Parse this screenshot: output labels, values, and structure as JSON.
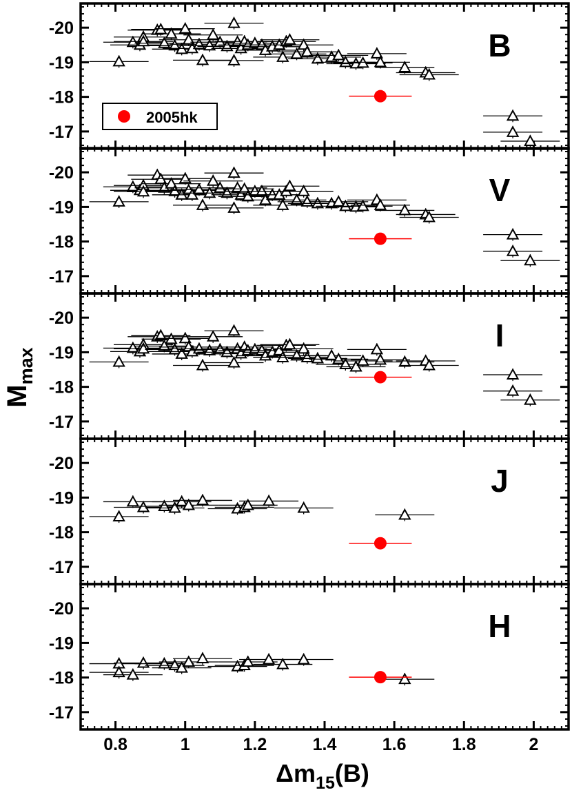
{
  "figure": {
    "ylabel_main": "M",
    "ylabel_sub": "max",
    "xlabel_delta": "Δm",
    "xlabel_sub": "15",
    "xlabel_tail": "(B)"
  },
  "chart_data": {
    "type": "scatter",
    "x_axis": {
      "label": "Δm15(B)",
      "range": [
        0.7,
        2.1
      ],
      "ticks": [
        0.8,
        1,
        1.2,
        1.4,
        1.6,
        1.8,
        2
      ],
      "tick_labels": [
        "0.8",
        "1",
        "1.2",
        "1.4",
        "1.6",
        "1.8",
        "2"
      ]
    },
    "y_axis": {
      "label": "Mmax",
      "range": [
        -16.5,
        -20.7
      ],
      "ticks": [
        -20,
        -19,
        -18,
        -17
      ],
      "tick_labels": [
        "-20",
        "-19",
        "-18",
        "-17"
      ],
      "inverted": true
    },
    "legend": {
      "label": "2005hk",
      "position": "top-left",
      "panel": "B"
    },
    "colors": {
      "highlight": "#ff0000",
      "comparison": "#000000"
    },
    "panels": [
      {
        "band": "B",
        "highlight": {
          "x": 1.56,
          "y": -18.02,
          "xerr": 0.09,
          "yerr": 0.3
        },
        "points": [
          [
            0.81,
            -19.02
          ],
          [
            0.85,
            -19.58
          ],
          [
            0.87,
            -19.5
          ],
          [
            0.88,
            -19.73
          ],
          [
            0.88,
            -19.6
          ],
          [
            0.92,
            -19.93
          ],
          [
            0.93,
            -19.95
          ],
          [
            0.94,
            -19.55
          ],
          [
            0.96,
            -19.82
          ],
          [
            0.97,
            -19.48
          ],
          [
            0.99,
            -19.38
          ],
          [
            1.0,
            -19.97
          ],
          [
            1.01,
            -19.65
          ],
          [
            1.02,
            -19.4
          ],
          [
            1.04,
            -19.52
          ],
          [
            1.05,
            -19.06
          ],
          [
            1.07,
            -19.48
          ],
          [
            1.08,
            -19.79
          ],
          [
            1.1,
            -19.58
          ],
          [
            1.12,
            -19.46
          ],
          [
            1.14,
            -20.13
          ],
          [
            1.14,
            -19.05
          ],
          [
            1.15,
            -19.59
          ],
          [
            1.16,
            -19.4
          ],
          [
            1.17,
            -19.6
          ],
          [
            1.18,
            -19.5
          ],
          [
            1.2,
            -19.55
          ],
          [
            1.22,
            -19.5
          ],
          [
            1.23,
            -19.35
          ],
          [
            1.25,
            -19.45
          ],
          [
            1.27,
            -19.5
          ],
          [
            1.28,
            -19.15
          ],
          [
            1.29,
            -19.6
          ],
          [
            1.3,
            -19.65
          ],
          [
            1.32,
            -19.24
          ],
          [
            1.34,
            -19.5
          ],
          [
            1.35,
            -19.3
          ],
          [
            1.38,
            -19.1
          ],
          [
            1.42,
            -19.15
          ],
          [
            1.44,
            -19.2
          ],
          [
            1.46,
            -19.0
          ],
          [
            1.49,
            -18.96
          ],
          [
            1.51,
            -18.98
          ],
          [
            1.55,
            -19.25
          ],
          [
            1.56,
            -19.0
          ],
          [
            1.63,
            -18.85
          ],
          [
            1.69,
            -18.7
          ],
          [
            1.7,
            -18.64
          ],
          [
            1.94,
            -17.45
          ],
          [
            1.94,
            -16.98
          ],
          [
            1.99,
            -16.72
          ]
        ]
      },
      {
        "band": "V",
        "highlight": {
          "x": 1.56,
          "y": -18.08,
          "xerr": 0.09,
          "yerr": 0.3
        },
        "points": [
          [
            0.81,
            -19.15
          ],
          [
            0.85,
            -19.58
          ],
          [
            0.87,
            -19.48
          ],
          [
            0.88,
            -19.62
          ],
          [
            0.88,
            -19.44
          ],
          [
            0.92,
            -19.92
          ],
          [
            0.93,
            -19.8
          ],
          [
            0.94,
            -19.55
          ],
          [
            0.96,
            -19.67
          ],
          [
            0.97,
            -19.45
          ],
          [
            0.99,
            -19.35
          ],
          [
            1.0,
            -19.82
          ],
          [
            1.01,
            -19.48
          ],
          [
            1.02,
            -19.35
          ],
          [
            1.04,
            -19.5
          ],
          [
            1.05,
            -19.05
          ],
          [
            1.07,
            -19.4
          ],
          [
            1.08,
            -19.75
          ],
          [
            1.1,
            -19.55
          ],
          [
            1.12,
            -19.4
          ],
          [
            1.14,
            -19.98
          ],
          [
            1.14,
            -18.97
          ],
          [
            1.15,
            -19.55
          ],
          [
            1.16,
            -19.35
          ],
          [
            1.17,
            -19.52
          ],
          [
            1.18,
            -19.3
          ],
          [
            1.2,
            -19.45
          ],
          [
            1.22,
            -19.45
          ],
          [
            1.23,
            -19.2
          ],
          [
            1.25,
            -19.35
          ],
          [
            1.27,
            -19.35
          ],
          [
            1.28,
            -19.05
          ],
          [
            1.29,
            -19.45
          ],
          [
            1.3,
            -19.6
          ],
          [
            1.32,
            -19.2
          ],
          [
            1.34,
            -19.45
          ],
          [
            1.35,
            -19.15
          ],
          [
            1.38,
            -19.1
          ],
          [
            1.42,
            -19.1
          ],
          [
            1.44,
            -19.15
          ],
          [
            1.46,
            -19.02
          ],
          [
            1.49,
            -19.0
          ],
          [
            1.51,
            -19.02
          ],
          [
            1.55,
            -19.2
          ],
          [
            1.56,
            -19.05
          ],
          [
            1.63,
            -18.9
          ],
          [
            1.69,
            -18.78
          ],
          [
            1.7,
            -18.7
          ],
          [
            1.94,
            -18.2
          ],
          [
            1.94,
            -17.72
          ],
          [
            1.99,
            -17.45
          ]
        ]
      },
      {
        "band": "I",
        "highlight": {
          "x": 1.56,
          "y": -18.28,
          "xerr": 0.09,
          "yerr": 0.25
        },
        "points": [
          [
            0.81,
            -18.72
          ],
          [
            0.85,
            -19.12
          ],
          [
            0.87,
            -19.02
          ],
          [
            0.88,
            -19.22
          ],
          [
            0.88,
            -19.1
          ],
          [
            0.92,
            -19.45
          ],
          [
            0.93,
            -19.48
          ],
          [
            0.94,
            -19.18
          ],
          [
            0.96,
            -19.38
          ],
          [
            0.97,
            -19.08
          ],
          [
            0.99,
            -18.95
          ],
          [
            1.0,
            -19.4
          ],
          [
            1.01,
            -19.15
          ],
          [
            1.02,
            -19.02
          ],
          [
            1.04,
            -19.1
          ],
          [
            1.05,
            -18.62
          ],
          [
            1.07,
            -19.05
          ],
          [
            1.08,
            -19.45
          ],
          [
            1.1,
            -19.08
          ],
          [
            1.12,
            -19.0
          ],
          [
            1.14,
            -19.62
          ],
          [
            1.14,
            -18.7
          ],
          [
            1.15,
            -19.1
          ],
          [
            1.16,
            -18.96
          ],
          [
            1.17,
            -19.15
          ],
          [
            1.18,
            -19.05
          ],
          [
            1.2,
            -19.08
          ],
          [
            1.22,
            -19.05
          ],
          [
            1.23,
            -18.9
          ],
          [
            1.25,
            -19.0
          ],
          [
            1.27,
            -19.05
          ],
          [
            1.28,
            -18.85
          ],
          [
            1.29,
            -19.2
          ],
          [
            1.3,
            -19.22
          ],
          [
            1.32,
            -18.9
          ],
          [
            1.34,
            -19.1
          ],
          [
            1.35,
            -18.85
          ],
          [
            1.38,
            -18.82
          ],
          [
            1.42,
            -18.9
          ],
          [
            1.44,
            -18.8
          ],
          [
            1.46,
            -18.65
          ],
          [
            1.49,
            -18.58
          ],
          [
            1.51,
            -18.75
          ],
          [
            1.55,
            -19.08
          ],
          [
            1.56,
            -18.78
          ],
          [
            1.63,
            -18.72
          ],
          [
            1.69,
            -18.75
          ],
          [
            1.7,
            -18.62
          ],
          [
            1.94,
            -18.35
          ],
          [
            1.94,
            -17.88
          ],
          [
            1.99,
            -17.62
          ]
        ]
      },
      {
        "band": "J",
        "highlight": {
          "x": 1.56,
          "y": -17.68,
          "xerr": 0.09,
          "yerr": 0.22
        },
        "points": [
          [
            0.81,
            -18.45
          ],
          [
            0.85,
            -18.88
          ],
          [
            0.88,
            -18.72
          ],
          [
            0.94,
            -18.75
          ],
          [
            0.97,
            -18.7
          ],
          [
            0.99,
            -18.88
          ],
          [
            1.01,
            -18.78
          ],
          [
            1.05,
            -18.92
          ],
          [
            1.15,
            -18.68
          ],
          [
            1.17,
            -18.72
          ],
          [
            1.18,
            -18.78
          ],
          [
            1.24,
            -18.9
          ],
          [
            1.34,
            -18.7
          ],
          [
            1.63,
            -18.5
          ]
        ]
      },
      {
        "band": "H",
        "highlight": {
          "x": 1.56,
          "y": -18.01,
          "xerr": 0.09,
          "yerr": 0.22
        },
        "points": [
          [
            0.81,
            -18.4
          ],
          [
            0.81,
            -18.15
          ],
          [
            0.85,
            -18.08
          ],
          [
            0.88,
            -18.42
          ],
          [
            0.94,
            -18.4
          ],
          [
            0.97,
            -18.35
          ],
          [
            0.99,
            -18.28
          ],
          [
            1.01,
            -18.45
          ],
          [
            1.05,
            -18.55
          ],
          [
            1.15,
            -18.32
          ],
          [
            1.17,
            -18.35
          ],
          [
            1.18,
            -18.45
          ],
          [
            1.24,
            -18.52
          ],
          [
            1.28,
            -18.38
          ],
          [
            1.34,
            -18.52
          ],
          [
            1.63,
            -17.95
          ]
        ]
      }
    ]
  }
}
